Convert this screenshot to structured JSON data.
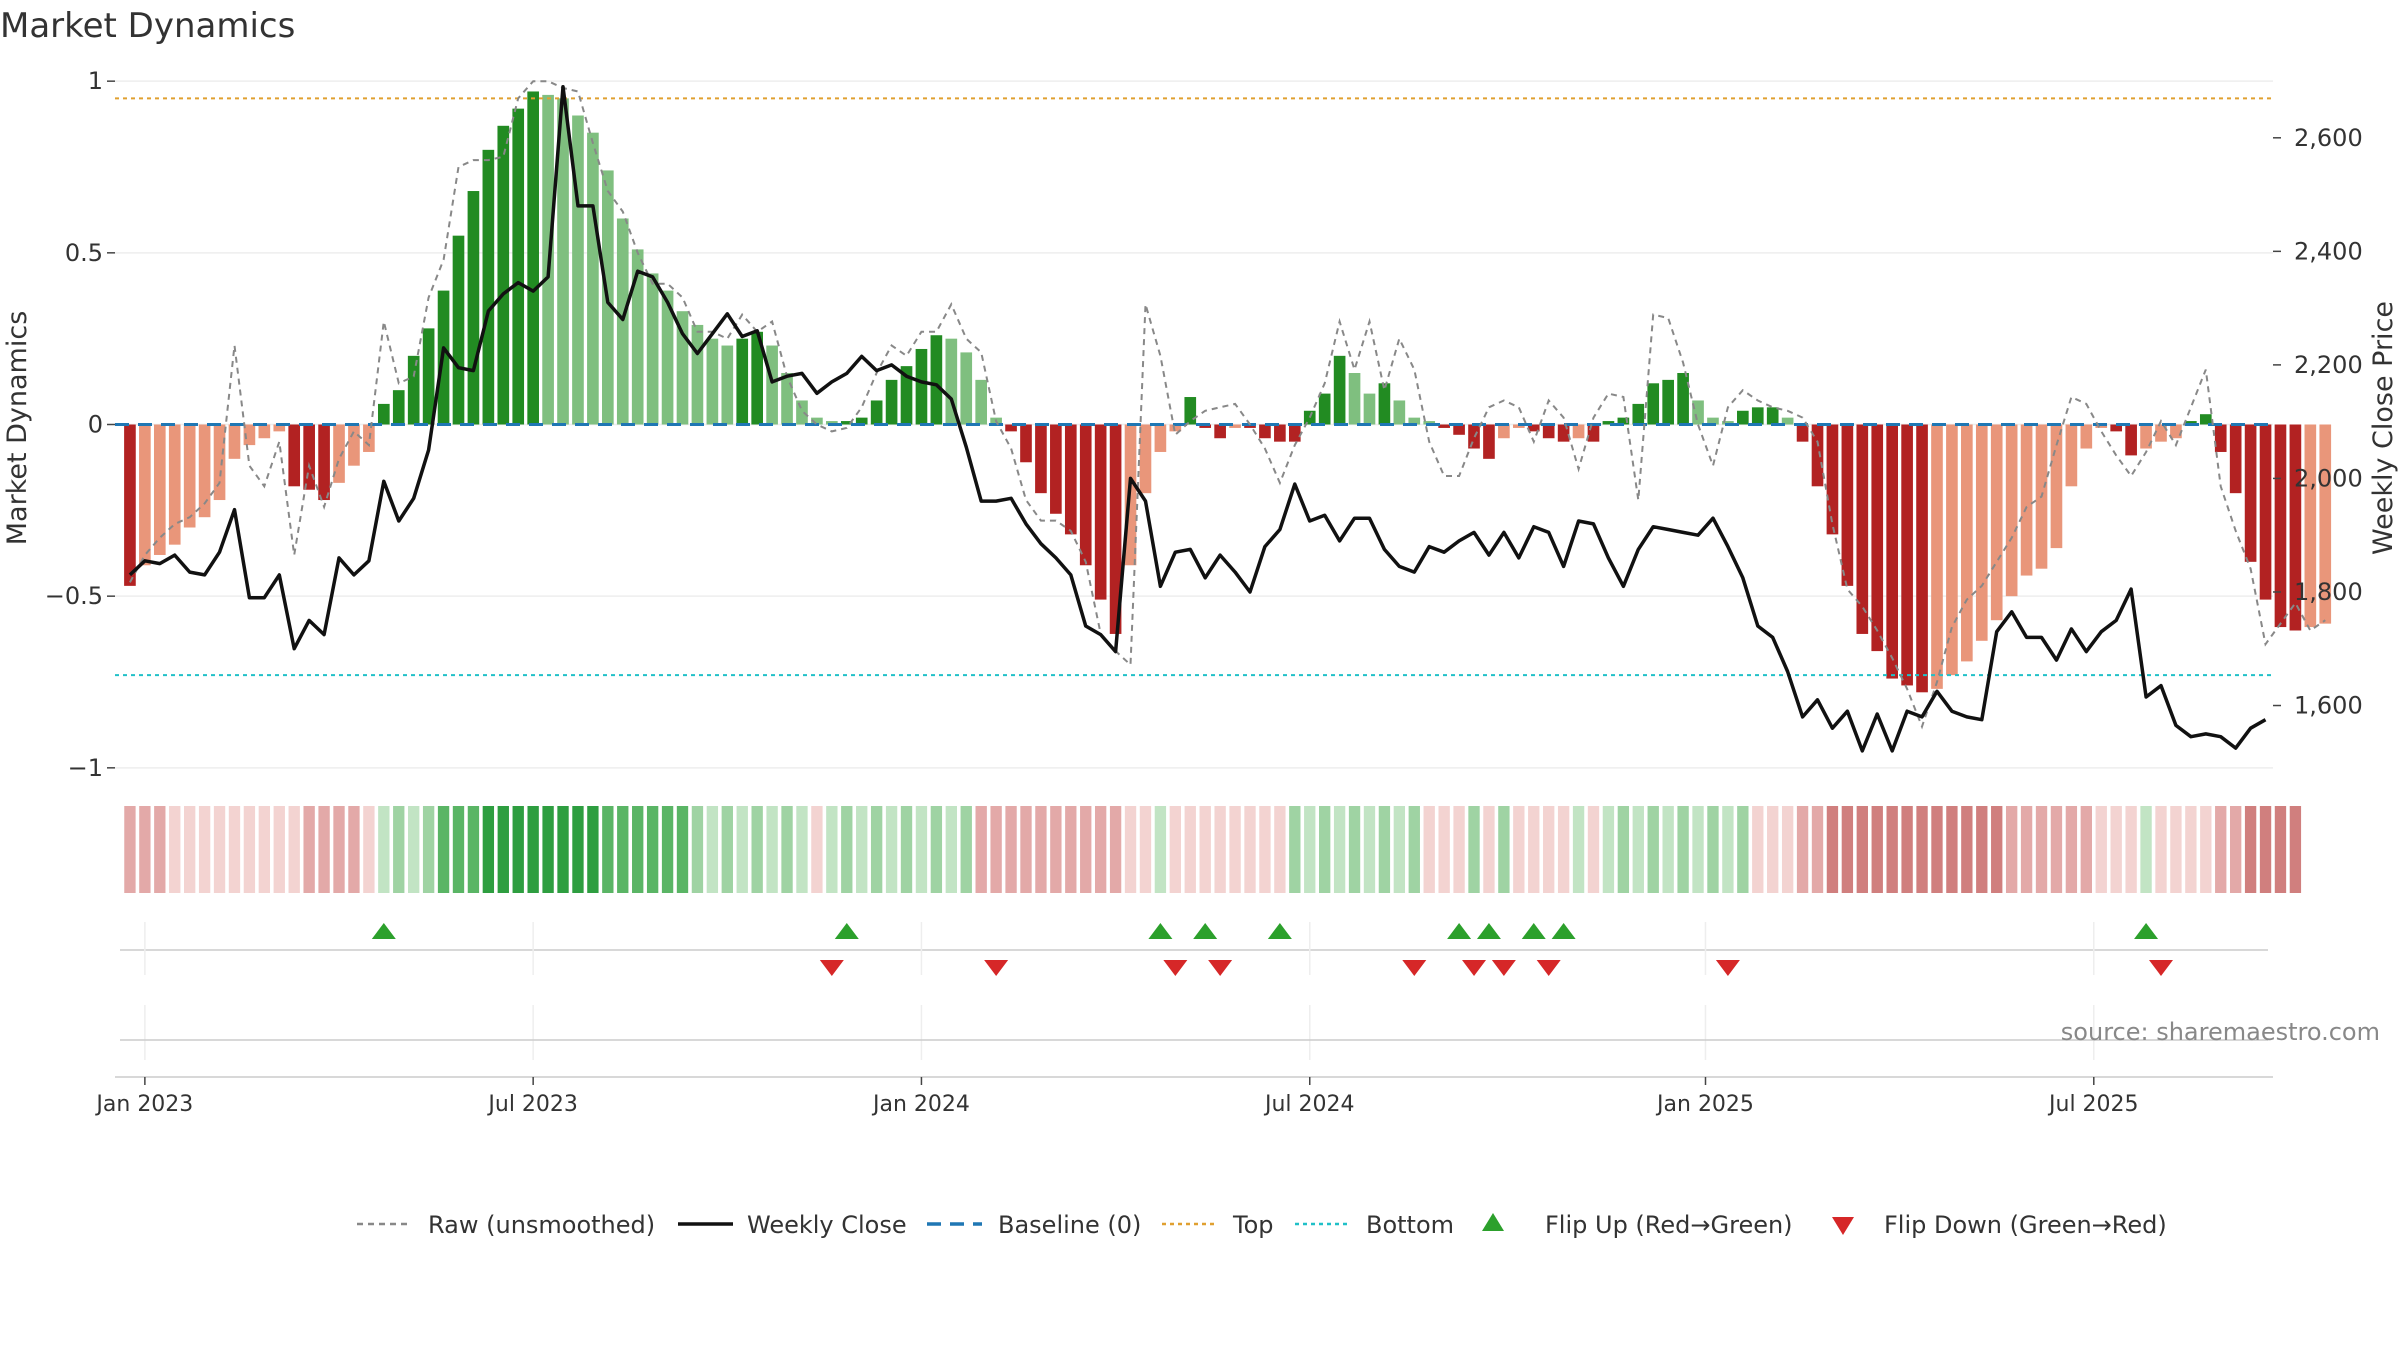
{
  "chart_data": {
    "type": "bar",
    "title": "Market Dynamics",
    "ylabel": "Market Dynamics",
    "y2label": "Weekly Close Price",
    "source": "source: sharemaestro.com",
    "ylim": [
      -1.05,
      1.05
    ],
    "y2lim": [
      1460,
      2730
    ],
    "yticks": [
      1,
      0.5,
      0,
      -0.5,
      -1
    ],
    "ytick_labels": [
      "1",
      "0.5",
      "0",
      "−0.5",
      "−1"
    ],
    "y2ticks": [
      2600,
      2400,
      2200,
      2000,
      1800,
      1600
    ],
    "y2tick_labels": [
      "2,600",
      "2,400",
      "2,200",
      "2,000",
      "1,800",
      "1,600"
    ],
    "xlim": [
      -1,
      143.5
    ],
    "xticks": [
      1,
      27,
      53,
      79,
      105.5,
      131.5
    ],
    "xtick_labels": [
      "Jan 2023",
      "Jul 2023",
      "Jan 2024",
      "Jul 2024",
      "Jan 2025",
      "Jul 2025"
    ],
    "top_level": 0.95,
    "bottom_level": -0.73,
    "baseline": 0,
    "grid": true,
    "legend_position": "bottom",
    "legend": [
      "Raw (unsmoothed)",
      "Weekly Close",
      "Baseline (0)",
      "Top",
      "Bottom",
      "Flip Up (Red→Green)",
      "Flip Down (Green→Red)"
    ],
    "colors": {
      "strong_green": "#228b22",
      "light_green": "#7fbf7f",
      "strong_red": "#b22222",
      "light_red": "#e9967a",
      "raw_line": "#888888",
      "close_line": "#111111",
      "baseline": "#1f77b4",
      "top": "#e0a030",
      "bottom": "#20c0c8",
      "flip_up": "#2ca02c",
      "flip_down": "#d62728"
    },
    "dynamics": [
      -0.47,
      -0.41,
      -0.38,
      -0.35,
      -0.3,
      -0.27,
      -0.22,
      -0.1,
      -0.06,
      -0.04,
      -0.02,
      -0.18,
      -0.19,
      -0.22,
      -0.17,
      -0.12,
      -0.08,
      0.06,
      0.1,
      0.2,
      0.28,
      0.39,
      0.55,
      0.68,
      0.8,
      0.87,
      0.92,
      0.97,
      0.96,
      0.95,
      0.9,
      0.85,
      0.74,
      0.6,
      0.51,
      0.44,
      0.39,
      0.33,
      0.29,
      0.25,
      0.23,
      0.25,
      0.27,
      0.23,
      0.15,
      0.07,
      0.02,
      0.01,
      0.01,
      0.02,
      0.07,
      0.13,
      0.17,
      0.22,
      0.26,
      0.25,
      0.21,
      0.13,
      0.02,
      -0.02,
      -0.11,
      -0.2,
      -0.26,
      -0.32,
      -0.41,
      -0.51,
      -0.61,
      -0.41,
      -0.2,
      -0.08,
      -0.02,
      0.08,
      -0.01,
      -0.04,
      -0.01,
      -0.01,
      -0.04,
      -0.05,
      -0.05,
      0.04,
      0.09,
      0.2,
      0.15,
      0.09,
      0.12,
      0.07,
      0.02,
      0.01,
      -0.01,
      -0.03,
      -0.07,
      -0.1,
      -0.04,
      -0.01,
      -0.02,
      -0.04,
      -0.05,
      -0.04,
      -0.05,
      0.01,
      0.02,
      0.06,
      0.12,
      0.13,
      0.15,
      0.07,
      0.02,
      0.01,
      0.04,
      0.05,
      0.05,
      0.02,
      -0.05,
      -0.18,
      -0.32,
      -0.47,
      -0.61,
      -0.66,
      -0.74,
      -0.76,
      -0.78,
      -0.77,
      -0.73,
      -0.69,
      -0.63,
      -0.57,
      -0.5,
      -0.44,
      -0.42,
      -0.36,
      -0.18,
      -0.07,
      -0.01,
      -0.02,
      -0.09,
      -0.07,
      -0.05,
      -0.04,
      0.01,
      0.03,
      -0.08,
      -0.2,
      -0.4,
      -0.51,
      -0.59,
      -0.6,
      -0.59,
      -0.58
    ],
    "raw": [
      -0.46,
      -0.38,
      -0.33,
      -0.29,
      -0.27,
      -0.23,
      -0.17,
      0.23,
      -0.12,
      -0.18,
      -0.05,
      -0.38,
      -0.12,
      -0.24,
      -0.1,
      -0.02,
      -0.06,
      0.3,
      0.12,
      0.14,
      0.37,
      0.48,
      0.75,
      0.77,
      0.77,
      0.78,
      0.95,
      1.0,
      1.0,
      0.98,
      0.97,
      0.82,
      0.68,
      0.62,
      0.5,
      0.41,
      0.41,
      0.37,
      0.27,
      0.27,
      0.25,
      0.32,
      0.27,
      0.3,
      0.14,
      0.04,
      0.0,
      -0.02,
      -0.01,
      0.05,
      0.15,
      0.23,
      0.2,
      0.27,
      0.27,
      0.35,
      0.25,
      0.21,
      0.01,
      -0.07,
      -0.22,
      -0.28,
      -0.28,
      -0.31,
      -0.4,
      -0.61,
      -0.66,
      -0.7,
      0.35,
      0.2,
      -0.03,
      0.01,
      0.04,
      0.05,
      0.06,
      0.0,
      -0.07,
      -0.17,
      -0.06,
      0.02,
      0.12,
      0.3,
      0.16,
      0.3,
      0.1,
      0.25,
      0.16,
      -0.05,
      -0.15,
      -0.15,
      -0.04,
      0.05,
      0.07,
      0.05,
      -0.05,
      0.07,
      0.02,
      -0.13,
      0.02,
      0.09,
      0.08,
      -0.22,
      0.32,
      0.31,
      0.18,
      0.0,
      -0.12,
      0.05,
      0.1,
      0.07,
      0.05,
      0.04,
      0.02,
      -0.05,
      -0.29,
      -0.48,
      -0.53,
      -0.6,
      -0.68,
      -0.77,
      -0.88,
      -0.75,
      -0.59,
      -0.51,
      -0.47,
      -0.4,
      -0.33,
      -0.24,
      -0.21,
      -0.06,
      0.08,
      0.06,
      -0.02,
      -0.09,
      -0.15,
      -0.08,
      0.01,
      -0.06,
      0.05,
      0.16,
      -0.18,
      -0.31,
      -0.42,
      -0.64,
      -0.58,
      -0.52,
      -0.6,
      -0.57
    ],
    "weekly_close": [
      1830,
      1855,
      1850,
      1865,
      1835,
      1830,
      1870,
      1945,
      1790,
      1790,
      1830,
      1700,
      1750,
      1725,
      1860,
      1830,
      1855,
      1995,
      1925,
      1965,
      2050,
      2230,
      2195,
      2190,
      2295,
      2325,
      2345,
      2330,
      2355,
      2690,
      2480,
      2480,
      2310,
      2280,
      2365,
      2355,
      2310,
      2255,
      2220,
      2255,
      2290,
      2250,
      2260,
      2170,
      2180,
      2185,
      2150,
      2170,
      2185,
      2215,
      2190,
      2200,
      2180,
      2170,
      2165,
      2140,
      2055,
      1960,
      1960,
      1965,
      1920,
      1885,
      1860,
      1830,
      1740,
      1725,
      1695,
      2000,
      1960,
      1810,
      1870,
      1875,
      1825,
      1865,
      1835,
      1800,
      1880,
      1910,
      1990,
      1925,
      1935,
      1890,
      1930,
      1930,
      1875,
      1845,
      1835,
      1880,
      1870,
      1890,
      1905,
      1865,
      1905,
      1860,
      1915,
      1905,
      1845,
      1925,
      1920,
      1860,
      1810,
      1875,
      1915,
      1910,
      1905,
      1900,
      1930,
      1880,
      1825,
      1740,
      1720,
      1660,
      1580,
      1610,
      1560,
      1590,
      1520,
      1585,
      1520,
      1590,
      1580,
      1625,
      1590,
      1580,
      1575,
      1730,
      1765,
      1720,
      1720,
      1680,
      1735,
      1695,
      1730,
      1750,
      1805,
      1615,
      1635,
      1565,
      1545,
      1550,
      1545,
      1525,
      1560,
      1575
    ],
    "strip": [
      2,
      2,
      2,
      1,
      1,
      1,
      1,
      1,
      1,
      1,
      1,
      1,
      2,
      2,
      2,
      2,
      1,
      -1,
      -1,
      -1,
      -1,
      -2,
      -2,
      -2,
      -3,
      -3,
      -3,
      -3,
      -3,
      -3,
      -3,
      -3,
      -2,
      -2,
      -2,
      -2,
      -2,
      -2,
      -1,
      -1,
      -1,
      -1,
      -1,
      -1,
      -1,
      -1,
      1,
      -1,
      -1,
      -1,
      -1,
      -1,
      -1,
      -1,
      -1,
      -1,
      -1,
      2,
      2,
      2,
      2,
      2,
      2,
      2,
      2,
      2,
      2,
      1,
      1,
      -1,
      1,
      1,
      1,
      1,
      1,
      1,
      1,
      1,
      -1,
      -1,
      -1,
      -1,
      -1,
      -1,
      -1,
      -1,
      -1,
      1,
      1,
      1,
      -1,
      1,
      -1,
      1,
      1,
      1,
      1,
      -1,
      1,
      -1,
      -1,
      -1,
      -1,
      -1,
      -1,
      -1,
      -1,
      -1,
      -1,
      1,
      1,
      1,
      2,
      2,
      3,
      3,
      3,
      3,
      3,
      3,
      3,
      3,
      3,
      3,
      3,
      3,
      2,
      2,
      2,
      2,
      2,
      2,
      1,
      1,
      1,
      -1,
      1,
      1,
      1,
      1,
      2,
      2,
      3,
      3,
      3,
      3
    ],
    "flip_up": [
      17,
      48,
      69,
      72,
      77,
      89,
      91,
      94,
      96,
      135
    ],
    "flip_down": [
      47,
      58,
      70,
      73,
      86,
      90,
      92,
      95,
      107,
      136
    ]
  }
}
